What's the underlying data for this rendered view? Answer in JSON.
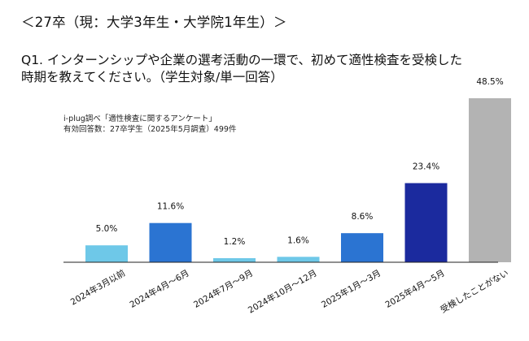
{
  "header": {
    "title": "＜27卒（現：大学3年生・大学院1年生）＞"
  },
  "question": {
    "line1": "Q1. インターンシップや企業の選考活動の一環で、初めて適性検査を受検した",
    "line2": "時期を教えてください。（学生対象/単一回答）"
  },
  "source": {
    "line1": "i-plug調べ「適性検査に関するアンケート」",
    "line2": "有効回答数：27卒学生（2025年5月調査）499件"
  },
  "chart_data": {
    "type": "bar",
    "categories": [
      "2024年3月以前",
      "2024年4月～6月",
      "2024年7月～9月",
      "2024年10月～12月",
      "2025年1月～3月",
      "2025年4月～5月",
      "受検したことがない"
    ],
    "values": [
      5.0,
      11.6,
      1.2,
      1.6,
      8.6,
      23.4,
      48.5
    ],
    "labels": [
      "5.0%",
      "11.6%",
      "1.2%",
      "1.6%",
      "8.6%",
      "23.4%",
      "48.5%"
    ],
    "colors": [
      "#6EC8E8",
      "#2B74D2",
      "#6EC8E8",
      "#6EC8E8",
      "#2B74D2",
      "#1B2A9E",
      "#B3B3B3"
    ],
    "ylim": [
      0,
      48.5
    ],
    "grid": false
  }
}
